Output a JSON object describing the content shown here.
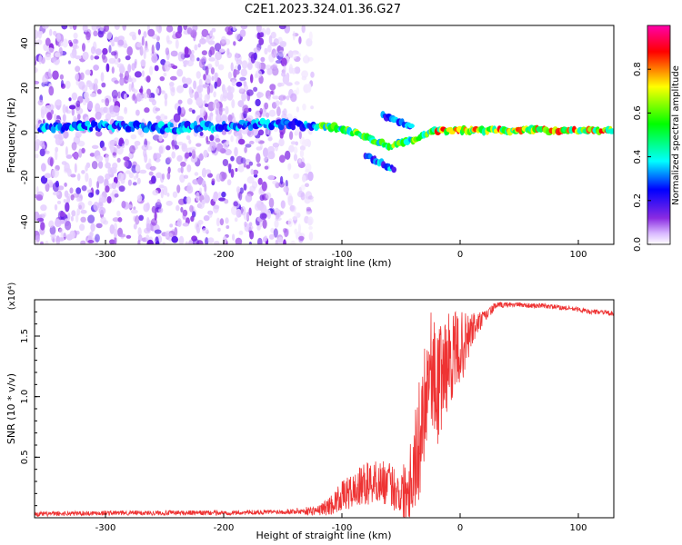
{
  "title": "C2E1.2023.324.01.36.G27",
  "colors": {
    "snr_line": "#ee3333",
    "frame": "#000000",
    "colorbar": [
      "#ffffff",
      "#8a2be2",
      "#0000ff",
      "#00ffff",
      "#00ff00",
      "#ffff00",
      "#ff0000",
      "#ff00aa"
    ]
  },
  "chart_data": [
    {
      "type": "heatmap",
      "title": "C2E1.2023.324.01.36.G27",
      "xlabel": "Height of straight line (km)",
      "ylabel": "Frequency (Hz)",
      "xlim": [
        -360,
        130
      ],
      "ylim": [
        -50,
        48
      ],
      "xticks": [
        -300,
        -200,
        -100,
        0,
        100
      ],
      "yticks": [
        -40,
        -20,
        0,
        20,
        40
      ],
      "colorbar": {
        "label": "Normalized spectral amplitude",
        "range": [
          0,
          1
        ],
        "ticks": [
          "0.0",
          "0.2",
          "0.4",
          "0.6",
          "0.8"
        ]
      },
      "features": [
        {
          "name": "diffuse noise",
          "x_range": [
            -360,
            -125
          ],
          "freq_range": [
            -50,
            48
          ],
          "amplitude": 0.05
        },
        {
          "name": "main signal ridge",
          "points": [
            [
              -355,
              2
            ],
            [
              -300,
              3
            ],
            [
              -250,
              2
            ],
            [
              -200,
              3
            ],
            [
              -150,
              4
            ],
            [
              -120,
              3
            ],
            [
              -100,
              2
            ],
            [
              -80,
              -2
            ],
            [
              -60,
              -6
            ],
            [
              -40,
              -3
            ],
            [
              -20,
              1
            ],
            [
              0,
              1
            ],
            [
              50,
              1
            ],
            [
              100,
              1
            ],
            [
              130,
              1
            ]
          ]
        },
        {
          "name": "secondary branch",
          "points": [
            [
              -65,
              8
            ],
            [
              -50,
              5
            ],
            [
              -40,
              2
            ]
          ]
        },
        {
          "name": "secondary branch low",
          "points": [
            [
              -80,
              -10
            ],
            [
              -65,
              -14
            ],
            [
              -55,
              -17
            ]
          ]
        }
      ]
    },
    {
      "type": "line",
      "xlabel": "Height of straight line (km)",
      "ylabel": "SNR (10 * v/v)",
      "yscale_label": "(x10⁴)",
      "xlim": [
        -360,
        130
      ],
      "ylim": [
        0,
        1.8
      ],
      "xticks": [
        -300,
        -200,
        -100,
        0,
        100
      ],
      "yticks": [
        0.5,
        1.0,
        1.5
      ],
      "ytick_labels": [
        "0.5",
        "1.0",
        "1.5"
      ],
      "series": [
        {
          "x": [
            -360,
            -300,
            -250,
            -200,
            -150,
            -120,
            -110,
            -100,
            -90,
            -80,
            -70,
            -60,
            -50,
            -45,
            -40,
            -35,
            -30,
            -25,
            -20,
            -15,
            -10,
            -5,
            0,
            5,
            10,
            15,
            20,
            25,
            30,
            40,
            50,
            60,
            70,
            80,
            90,
            100,
            110,
            120,
            130
          ],
          "y": [
            0.03,
            0.04,
            0.04,
            0.04,
            0.05,
            0.06,
            0.1,
            0.18,
            0.22,
            0.28,
            0.3,
            0.28,
            0.2,
            0.25,
            0.4,
            0.6,
            1.0,
            1.3,
            1.05,
            1.2,
            1.3,
            1.35,
            1.4,
            1.45,
            1.55,
            1.6,
            1.65,
            1.7,
            1.75,
            1.76,
            1.76,
            1.75,
            1.75,
            1.74,
            1.73,
            1.72,
            1.7,
            1.7,
            1.68
          ],
          "noise": [
            0.02,
            0.02,
            0.02,
            0.02,
            0.02,
            0.04,
            0.08,
            0.12,
            0.15,
            0.18,
            0.18,
            0.18,
            0.2,
            0.3,
            0.4,
            0.5,
            0.5,
            0.45,
            0.5,
            0.45,
            0.4,
            0.35,
            0.3,
            0.25,
            0.15,
            0.1,
            0.06,
            0.04,
            0.03,
            0.02,
            0.02,
            0.02,
            0.02,
            0.02,
            0.02,
            0.02,
            0.02,
            0.02,
            0.02
          ]
        }
      ]
    }
  ]
}
